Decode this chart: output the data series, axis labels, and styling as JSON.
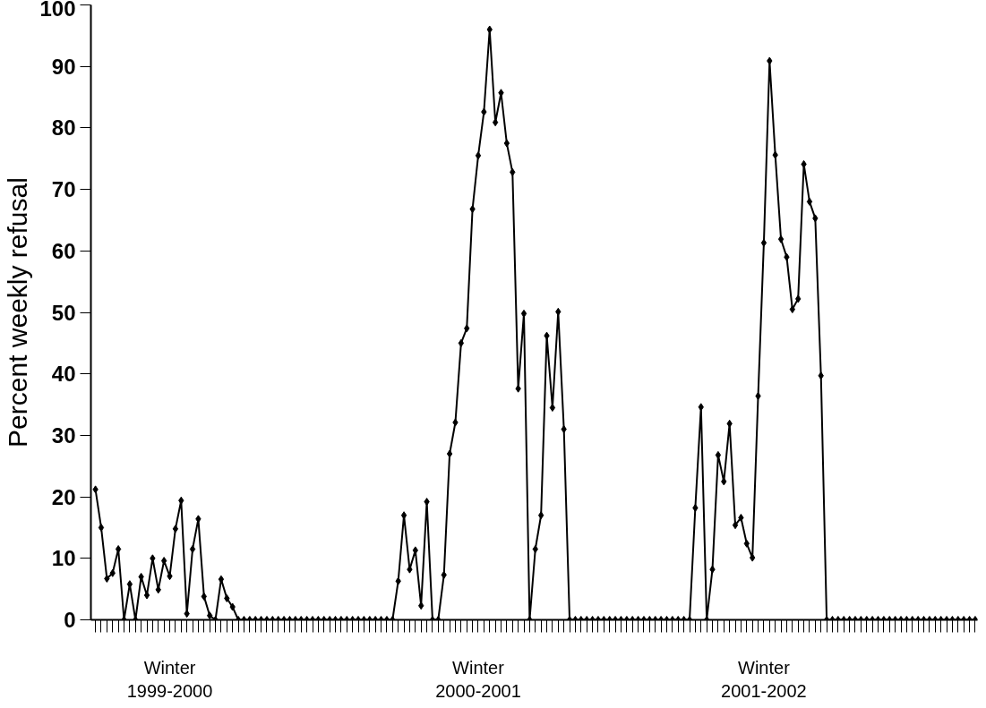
{
  "chart_data": {
    "type": "line",
    "ylabel": "Percent weekly refusal",
    "categories": [
      null,
      null,
      null,
      null,
      null,
      null,
      null,
      null,
      null,
      null,
      null,
      null,
      null,
      "Winter\n1999-2000",
      null,
      null,
      null,
      null,
      null,
      null,
      null,
      null,
      null,
      null,
      null,
      null,
      null,
      null,
      null,
      null,
      null,
      null,
      null,
      null,
      null,
      null,
      null,
      null,
      null,
      null,
      null,
      null,
      null,
      null,
      null,
      null,
      null,
      null,
      null,
      null,
      null,
      null,
      null,
      null,
      null,
      null,
      null,
      null,
      null,
      null,
      null,
      null,
      null,
      null,
      null,
      null,
      null,
      "Winter\n2000-2001",
      null,
      null,
      null,
      null,
      null,
      null,
      null,
      null,
      null,
      null,
      null,
      null,
      null,
      null,
      null,
      null,
      null,
      null,
      null,
      null,
      null,
      null,
      null,
      null,
      null,
      null,
      null,
      null,
      null,
      null,
      null,
      null,
      null,
      null,
      null,
      null,
      null,
      null,
      null,
      null,
      null,
      null,
      null,
      null,
      null,
      null,
      null,
      null,
      null,
      "Winter\n2001-2002",
      null,
      null,
      null,
      null,
      null,
      null,
      null,
      null,
      null,
      null,
      null,
      null,
      null,
      null,
      null,
      null,
      null,
      null,
      null,
      null,
      null,
      null,
      null,
      null,
      null,
      null,
      null,
      null,
      null,
      null,
      null,
      null,
      null,
      null,
      null,
      null,
      null
    ],
    "series": [
      {
        "color": "#000000",
        "values": [
          21.2,
          15.0,
          6.7,
          7.6,
          11.5,
          0,
          5.8,
          0,
          7.0,
          4.0,
          10.0,
          4.9,
          9.6,
          7.1,
          14.8,
          19.4,
          1.0,
          11.5,
          16.4,
          3.8,
          0.7,
          0,
          6.6,
          3.5,
          2.1,
          0,
          0,
          0,
          0,
          0,
          0,
          0,
          0,
          0,
          0,
          0,
          0,
          0,
          0,
          0,
          0,
          0,
          0,
          0,
          0,
          0,
          0,
          0,
          0,
          0,
          0,
          0,
          0,
          6.3,
          17.0,
          8.2,
          11.3,
          2.3,
          19.2,
          0,
          0,
          7.3,
          27.0,
          32.1,
          45.0,
          47.4,
          66.8,
          75.5,
          82.6,
          96.0,
          80.9,
          85.7,
          77.5,
          72.8,
          37.6,
          49.8,
          0,
          11.5,
          17.0,
          46.2,
          34.5,
          50.1,
          31.0,
          0,
          0,
          0,
          0,
          0,
          0,
          0,
          0,
          0,
          0,
          0,
          0,
          0,
          0,
          0,
          0,
          0,
          0,
          0,
          0,
          0,
          0,
          18.2,
          34.6,
          0,
          8.2,
          26.8,
          22.5,
          31.9,
          15.4,
          16.6,
          12.4,
          10.1,
          36.4,
          61.3,
          90.9,
          75.6,
          61.9,
          59.0,
          50.5,
          52.2,
          74.1,
          68.0,
          65.3,
          39.7,
          0,
          0,
          0,
          0,
          0,
          0,
          0,
          0,
          0,
          0,
          0,
          0,
          0,
          0,
          0,
          0,
          0,
          0,
          0,
          0,
          0,
          0,
          0,
          0,
          0,
          0,
          0
        ]
      }
    ],
    "ylim": [
      0,
      100
    ],
    "yticks": [
      0,
      10,
      20,
      30,
      40,
      50,
      60,
      70,
      80,
      90,
      100
    ],
    "grid": false,
    "marker": "diamond",
    "line_style": "solid"
  }
}
